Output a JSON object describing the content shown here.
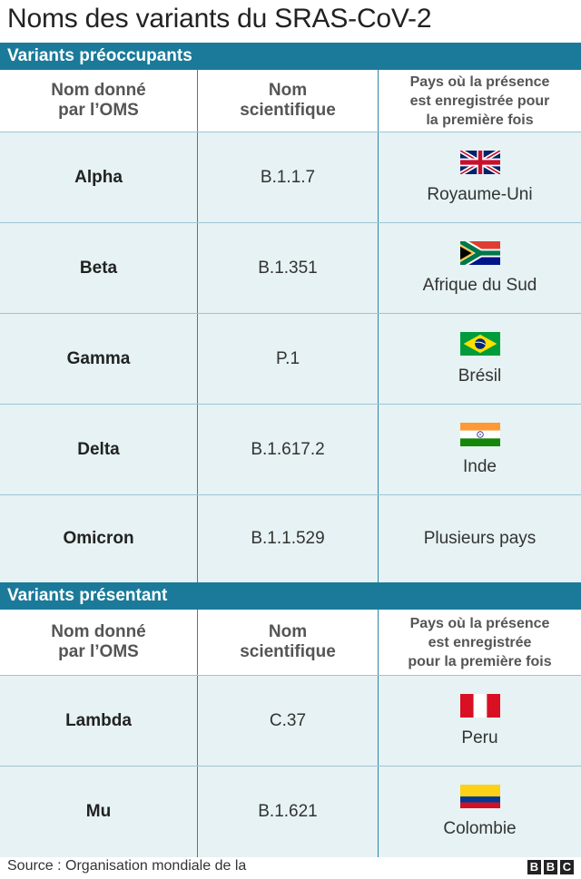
{
  "title": "Noms des variants du SRAS-CoV-2",
  "section1": {
    "heading": "Variants préoccupants",
    "headers": {
      "who_name": [
        "Nom donné",
        "par l’OMS"
      ],
      "scientific": [
        "Nom",
        "scientifique"
      ],
      "country": [
        "Pays où la présence",
        "est enregistrée pour",
        "la première fois"
      ]
    },
    "rows": [
      {
        "who_name": "Alpha",
        "scientific": "B.1.1.7",
        "country": "Royaume-Uni",
        "flag": "uk-flag-icon"
      },
      {
        "who_name": "Beta",
        "scientific": "B.1.351",
        "country": "Afrique du Sud",
        "flag": "south-africa-flag-icon"
      },
      {
        "who_name": "Gamma",
        "scientific": "P.1",
        "country": "Brésil",
        "flag": "brazil-flag-icon"
      },
      {
        "who_name": "Delta",
        "scientific": "B.1.617.2",
        "country": "Inde",
        "flag": "india-flag-icon"
      },
      {
        "who_name": "Omicron",
        "scientific": "B.1.1.529",
        "country": "Plusieurs pays",
        "flag": ""
      }
    ]
  },
  "section2": {
    "heading": "Variants présentant",
    "headers": {
      "who_name": [
        "Nom donné",
        "par l’OMS"
      ],
      "scientific": [
        "Nom",
        "scientifique"
      ],
      "country": [
        "Pays où la présence",
        "est enregistrée",
        "pour la première fois"
      ]
    },
    "rows": [
      {
        "who_name": "Lambda",
        "scientific": "C.37",
        "country": "Peru",
        "flag": "peru-flag-icon"
      },
      {
        "who_name": "Mu",
        "scientific": "B.1.621",
        "country": "Colombie",
        "flag": "colombia-flag-icon"
      }
    ]
  },
  "footer": {
    "source": "Source : Organisation mondiale de la",
    "brand": [
      "B",
      "B",
      "C"
    ]
  },
  "colors": {
    "section_bar": "#1b7a99",
    "row_bg": "#e6f2f3",
    "divider": "#2d87a8"
  }
}
